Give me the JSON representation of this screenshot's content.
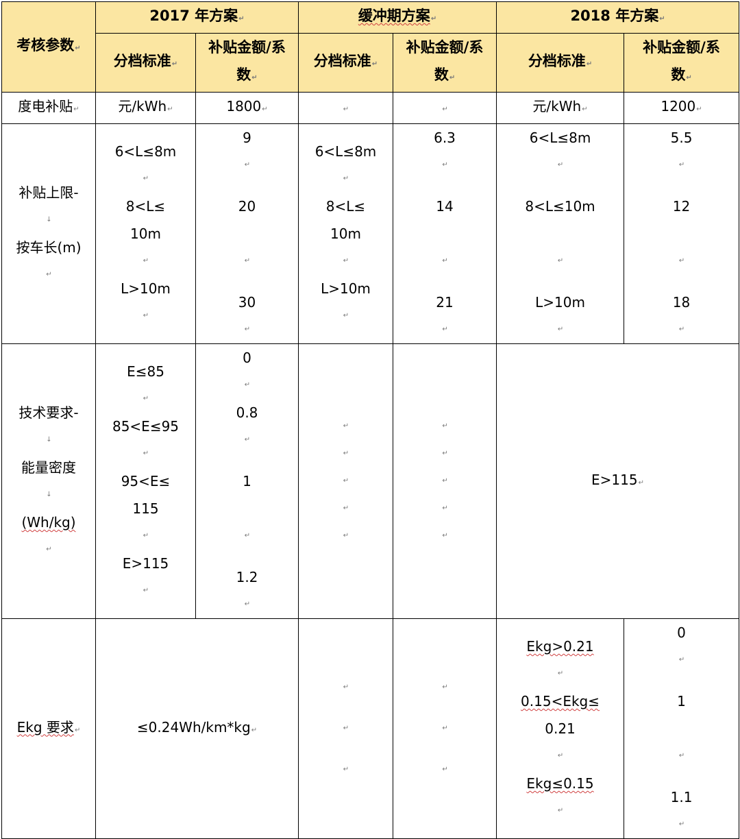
{
  "header": {
    "param": "考核参数",
    "plans": [
      "2017 年方案",
      "缓冲期方案",
      "2018 年方案"
    ],
    "std": "分档标准",
    "amt_line1": "补贴金额/系",
    "amt_line2": "数"
  },
  "rows": {
    "subsidy": {
      "label": "度电补贴",
      "p2017_std": "元/kWh",
      "p2017_amt": "1800",
      "p2018_std": "元/kWh",
      "p2018_amt": "1200"
    },
    "length": {
      "label_line1": "补贴上限-",
      "label_line2": "按车长(m)",
      "std": [
        "6<L≤8m",
        "8<L≤",
        "10m",
        "L>10m"
      ],
      "std_2018": [
        "6<L≤8m",
        "8<L≤10m",
        "L>10m"
      ],
      "v2017": [
        "9",
        "20",
        "30"
      ],
      "vbuf": [
        "6.3",
        "14",
        "21"
      ],
      "v2018": [
        "5.5",
        "12",
        "18"
      ]
    },
    "energy": {
      "label_line1": "技术要求-",
      "label_line2": "能量密度",
      "label_line3": "(Wh/kg)",
      "std": [
        "E≤85",
        "85<E≤95",
        "95<E≤",
        "115",
        "E>115"
      ],
      "v2017": [
        "0",
        "0.8",
        "1",
        "1.2"
      ],
      "p2018": "E>115"
    },
    "ekg": {
      "label": "Ekg 要求",
      "p2017": "≤0.24Wh/km*kg",
      "std_2018": [
        "Ekg>0.21",
        "0.15<Ekg≤",
        "0.21",
        "Ekg≤0.15"
      ],
      "v2018": [
        "0",
        "1",
        "1.1"
      ]
    }
  }
}
